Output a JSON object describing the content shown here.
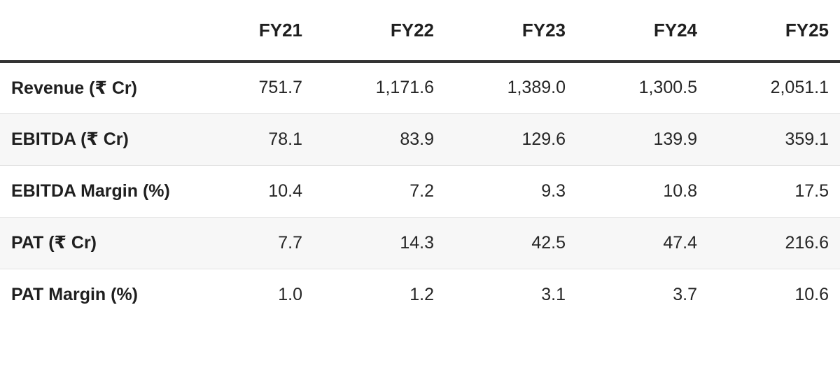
{
  "chart_data": {
    "type": "table",
    "columns": [
      "FY21",
      "FY22",
      "FY23",
      "FY24",
      "FY25"
    ],
    "rows": [
      {
        "label": "Revenue (₹ Cr)",
        "values": [
          "751.7",
          "1,171.6",
          "1,389.0",
          "1,300.5",
          "2,051.1"
        ]
      },
      {
        "label": "EBITDA (₹ Cr)",
        "values": [
          "78.1",
          "83.9",
          "129.6",
          "139.9",
          "359.1"
        ]
      },
      {
        "label": "EBITDA Margin (%)",
        "values": [
          "10.4",
          "7.2",
          "9.3",
          "10.8",
          "17.5"
        ]
      },
      {
        "label": "PAT (₹ Cr)",
        "values": [
          "7.7",
          "14.3",
          "42.5",
          "47.4",
          "216.6"
        ]
      },
      {
        "label": "PAT Margin (%)",
        "values": [
          "1.0",
          "1.2",
          "3.1",
          "3.7",
          "10.6"
        ]
      }
    ]
  }
}
